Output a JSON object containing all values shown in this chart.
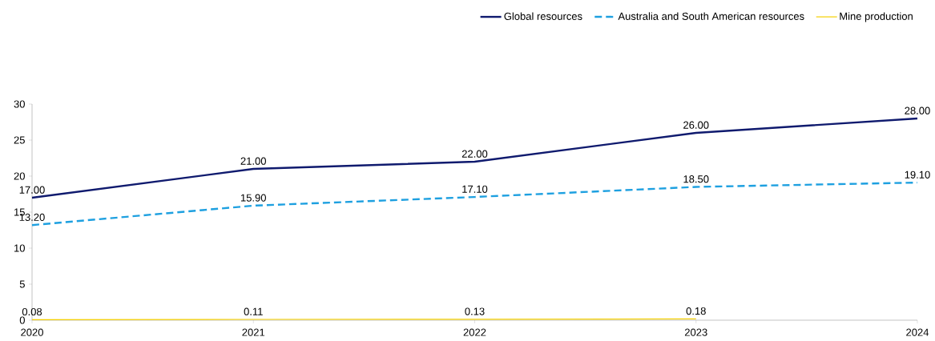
{
  "chart_data": {
    "type": "line",
    "x": [
      2020,
      2021,
      2022,
      2023,
      2024
    ],
    "xlim": [
      2020,
      2024
    ],
    "xticks": [
      2020,
      2021,
      2022,
      2023,
      2024
    ],
    "ylim": [
      0,
      30
    ],
    "yticks": [
      0,
      5,
      10,
      15,
      20,
      25,
      30
    ],
    "legend": "top right",
    "series": [
      {
        "name": "Global resources",
        "color": "#0f1a6e",
        "line_style": "solid",
        "values": [
          17,
          21,
          22,
          26,
          28
        ],
        "value_labels": [
          "17.00",
          "21.00",
          "22.00",
          "26.00",
          "28.00"
        ]
      },
      {
        "name": "Australia and South American resources",
        "color": "#1ea0e0",
        "line_style": "dashed",
        "values": [
          13.2,
          15.9,
          17.1,
          18.5,
          19.1
        ],
        "value_labels": [
          "13.20",
          "15.90",
          "17.10",
          "18.50",
          "19.10"
        ]
      },
      {
        "name": "Mine production",
        "color": "#f5d000",
        "line_style": "solid",
        "values": [
          0.08,
          0.11,
          0.13,
          0.18,
          null
        ],
        "value_labels": [
          "0.08",
          "0.11",
          "0.13",
          "0.18",
          null
        ]
      }
    ]
  }
}
